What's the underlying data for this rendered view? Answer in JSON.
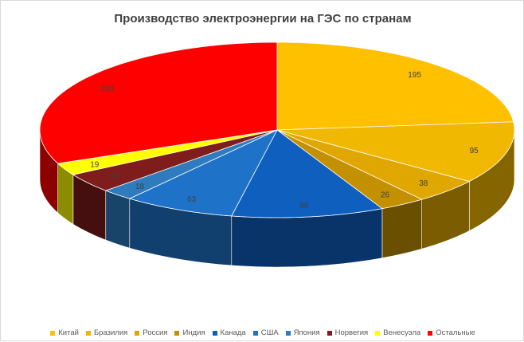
{
  "chart_data": {
    "type": "pie",
    "style": "3d",
    "title": "Производство электроэнергии на ГЭС по странам",
    "legend_position": "bottom",
    "start_angle": "top, clockwise",
    "slices": [
      {
        "label": "Китай",
        "value": 195,
        "color": "#FFC000"
      },
      {
        "label": "Бразилия",
        "value": 95,
        "color": "#F0B800"
      },
      {
        "label": "Россия",
        "value": 38,
        "color": "#DFA700"
      },
      {
        "label": "Индия",
        "value": 26,
        "color": "#C39000"
      },
      {
        "label": "Канада",
        "value": 86,
        "color": "#0F5FBF"
      },
      {
        "label": "США",
        "value": 63,
        "color": "#1E73C8"
      },
      {
        "label": "Япония",
        "value": 18,
        "color": "#2E7BBE"
      },
      {
        "label": "Норвегия",
        "value": 30,
        "color": "#7F1C1C"
      },
      {
        "label": "Венесуэла",
        "value": 19,
        "color": "#FFFF00"
      },
      {
        "label": "Остальные",
        "value": 259,
        "color": "#FF0000"
      }
    ]
  }
}
